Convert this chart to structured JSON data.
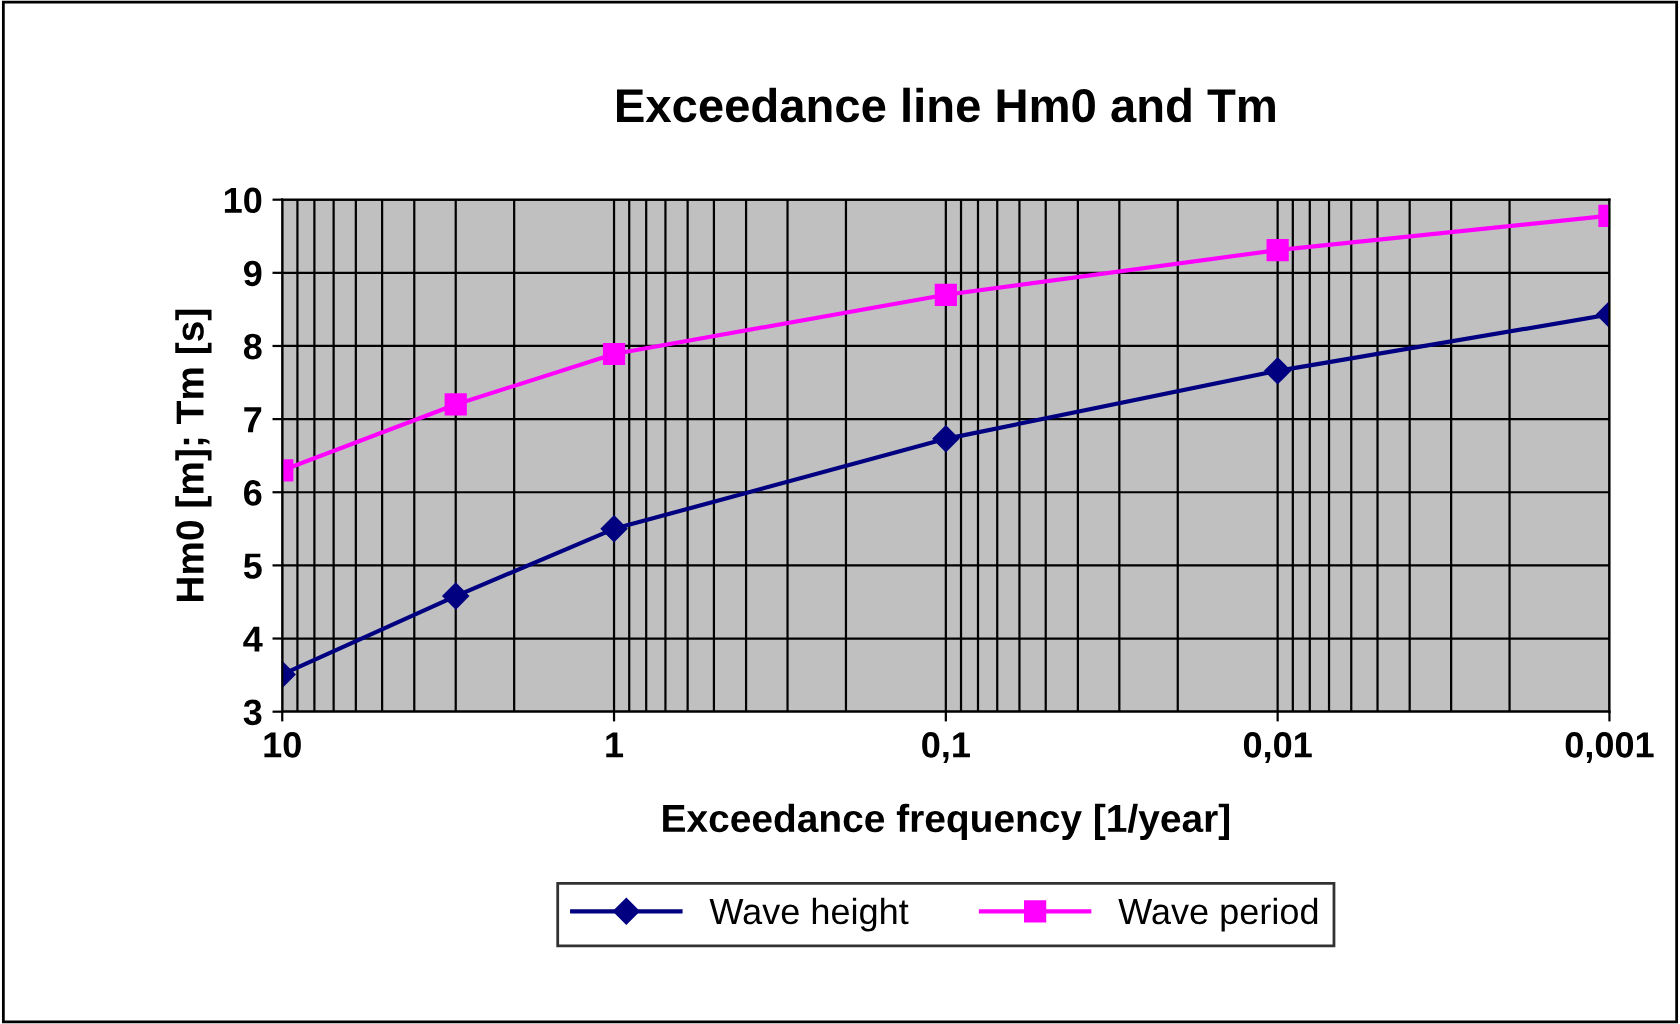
{
  "chart_data": {
    "type": "line",
    "title": "Exceedance line Hm0 and Tm",
    "xlabel": "Exceedance frequency [1/year]",
    "ylabel": "Hm0 [m]; Tm [s]",
    "x": [
      10,
      3,
      1,
      0.1,
      0.01,
      0.001
    ],
    "series": [
      {
        "name": "Wave height",
        "color": "#000080",
        "marker": "diamond",
        "values": [
          3.51,
          4.58,
          5.5,
          6.73,
          7.66,
          8.43
        ]
      },
      {
        "name": "Wave period",
        "color": "#ff00ff",
        "marker": "square",
        "values": [
          6.3,
          7.2,
          7.89,
          8.7,
          9.31,
          9.78
        ]
      }
    ],
    "log": "x",
    "xlim": [
      10,
      0.001
    ],
    "ylim": [
      3,
      10
    ],
    "xticks": [
      10,
      1,
      {
        "value": 0.1,
        "label": "0,1"
      },
      {
        "value": 0.01,
        "label": "0,01"
      },
      {
        "value": 0.001,
        "label": "0,001"
      }
    ],
    "yticks": [
      3,
      4,
      5,
      6,
      7,
      8,
      9,
      10
    ],
    "grid": true,
    "legend": "bottom",
    "line_style": "solid"
  }
}
